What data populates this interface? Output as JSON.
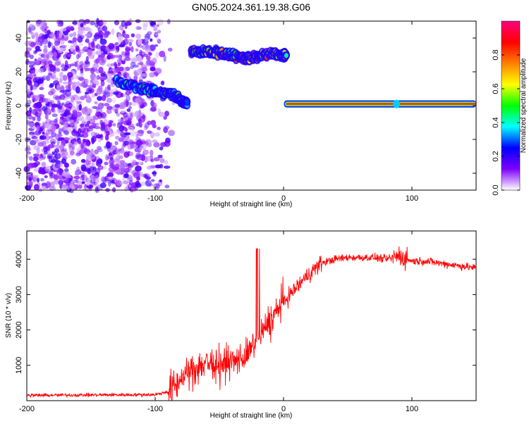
{
  "title": "GN05.2024.361.19.38.G06",
  "chart_data": [
    {
      "type": "heatmap",
      "xlabel": "Height of straight line (km)",
      "ylabel": "Frequency (Hz)",
      "xlim": [
        -200,
        150
      ],
      "ylim": [
        -50,
        50
      ],
      "xticks": [
        -200,
        -100,
        0,
        100
      ],
      "yticks": [
        -40,
        -20,
        0,
        20,
        40
      ],
      "colorbar": {
        "label": "Normalized spectral amplitude",
        "range": [
          0,
          1
        ],
        "ticks": [
          0.0,
          0.2,
          0.4,
          0.6,
          0.8
        ],
        "colormap": [
          "#ffffff",
          "#7f00ff",
          "#0000ff",
          "#00ffff",
          "#00ff00",
          "#ffff00",
          "#ff7f00",
          "#ff0000",
          "#ff0080"
        ]
      },
      "features": [
        {
          "name": "noise",
          "x_range": [
            -200,
            -85
          ],
          "y_range": [
            -50,
            50
          ],
          "amplitude": 0.15
        },
        {
          "name": "doppler-track-1",
          "points": [
            [
              -130,
              14
            ],
            [
              -110,
              10
            ],
            [
              -95,
              8
            ],
            [
              -85,
              6
            ],
            [
              -80,
              3
            ],
            [
              -75,
              2
            ]
          ],
          "amplitude": 0.4
        },
        {
          "name": "doppler-track-2",
          "points": [
            [
              -72,
              32
            ],
            [
              -60,
              32
            ],
            [
              -50,
              31
            ],
            [
              -40,
              30
            ],
            [
              -30,
              28
            ],
            [
              -20,
              29
            ],
            [
              -10,
              31
            ],
            [
              0,
              30
            ],
            [
              2,
              30
            ]
          ],
          "amplitude": 0.7
        },
        {
          "name": "direct-line",
          "x_range": [
            2,
            150
          ],
          "y": 1,
          "amplitude": 0.95
        }
      ]
    },
    {
      "type": "line",
      "xlabel": "Height of straight line (km)",
      "ylabel": "SNR (10 * v/v)",
      "xlim": [
        -200,
        150
      ],
      "ylim": [
        0,
        4800
      ],
      "xticks": [
        -200,
        -100,
        0,
        100
      ],
      "yticks": [
        1000,
        2000,
        3000,
        4000
      ],
      "color": "#ff0000",
      "series": [
        {
          "x": [
            -200,
            -150,
            -100,
            -90,
            -80,
            -70,
            -60,
            -50,
            -40,
            -30,
            -20,
            -10,
            0,
            10,
            20,
            30,
            40,
            50,
            60,
            70,
            80,
            90,
            100,
            110,
            120,
            130,
            140,
            150
          ],
          "values": [
            150,
            160,
            170,
            250,
            600,
            900,
            1100,
            1000,
            1100,
            1200,
            1700,
            2300,
            2800,
            3200,
            3600,
            3900,
            4000,
            4050,
            4050,
            4050,
            4000,
            4100,
            3950,
            3950,
            3900,
            3850,
            3800,
            3750
          ]
        }
      ]
    }
  ]
}
